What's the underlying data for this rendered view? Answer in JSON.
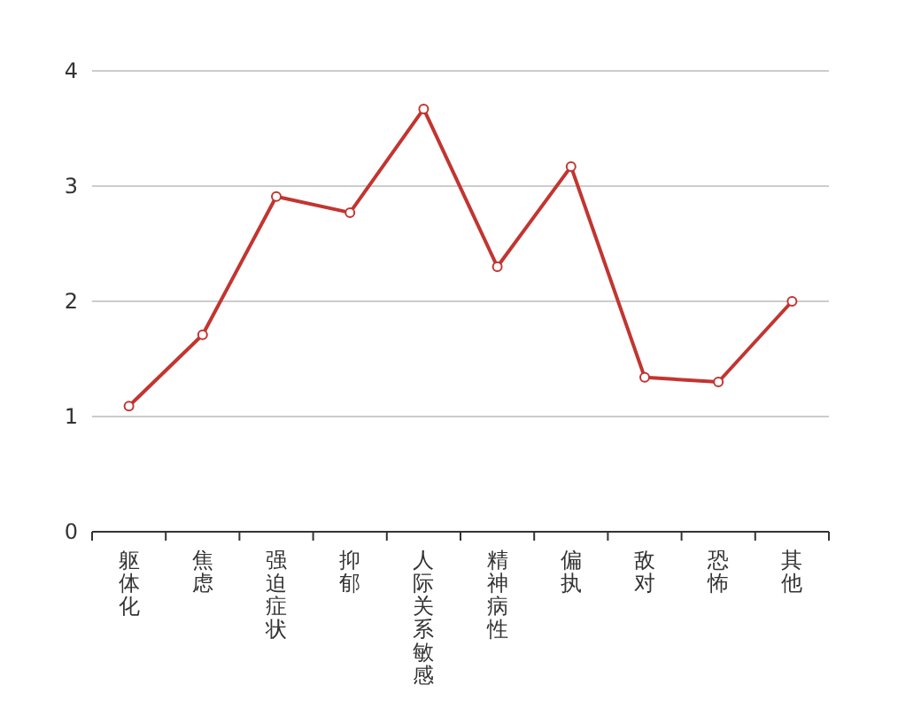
{
  "chart_data": {
    "type": "line",
    "categories": [
      "躯体化",
      "焦虑",
      "强迫症状",
      "抑郁",
      "人际关系敏感",
      "精神病性",
      "偏执",
      "敌对",
      "恐怖",
      "其他"
    ],
    "values": [
      1.09,
      1.71,
      2.91,
      2.77,
      3.67,
      2.3,
      3.17,
      1.34,
      1.3,
      2.0
    ],
    "color": "#c23531",
    "ylim": [
      0,
      4
    ],
    "yticks": [
      0,
      1,
      2,
      3,
      4
    ],
    "grid": "y",
    "marker": "circle"
  }
}
